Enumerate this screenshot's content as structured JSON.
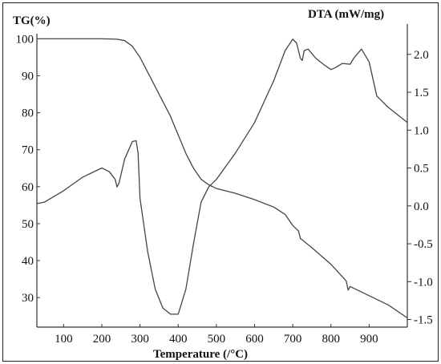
{
  "chart_data": {
    "type": "line",
    "xlabel": "Temperature (/°C)",
    "ylabel_left": "TG(%)",
    "ylabel_right": "DTA (mW/mg)",
    "xlim": [
      30,
      1000
    ],
    "ylim_left": [
      22,
      104
    ],
    "ylim_right": [
      -1.6,
      2.4
    ],
    "x_ticks": [
      100,
      200,
      300,
      400,
      500,
      600,
      700,
      800,
      900
    ],
    "x_tick_labels": [
      "100",
      "200",
      "300",
      "400",
      "500",
      "600",
      "700",
      "800",
      "900"
    ],
    "y_left_ticks": [
      100,
      90,
      80,
      70,
      60,
      50,
      40,
      30
    ],
    "y_left_tick_labels": [
      "100",
      "90",
      "80",
      "70",
      "60",
      "50",
      "40",
      "30"
    ],
    "y_right_ticks": [
      2.0,
      1.5,
      1.0,
      0.5,
      0.0,
      -0.5,
      -1.0,
      -1.5
    ],
    "y_right_tick_labels": [
      "2.0",
      "1.5",
      "1.0",
      "0.5",
      "0.0",
      "-0.5",
      "-1.0",
      "-1.5"
    ],
    "grid": false,
    "series": [
      {
        "axis": "left",
        "x": [
          30,
          100,
          150,
          200,
          240,
          260,
          280,
          300,
          330,
          360,
          380,
          400,
          420,
          440,
          460,
          480,
          500,
          550,
          600,
          650,
          680,
          700,
          715,
          720,
          750,
          800,
          840,
          845,
          850,
          900,
          950,
          1000
        ],
        "y": [
          100,
          100,
          100,
          100,
          99.9,
          99.5,
          98,
          95,
          89,
          83,
          79,
          74,
          69,
          65,
          62,
          60.5,
          59.5,
          58.2,
          56.5,
          54.5,
          52.5,
          49.5,
          48,
          46,
          43.5,
          39,
          34.5,
          32,
          33,
          30.5,
          28,
          24.5
        ]
      },
      {
        "axis": "right",
        "x": [
          30,
          50,
          100,
          150,
          200,
          220,
          235,
          240,
          245,
          260,
          280,
          290,
          295,
          300,
          320,
          340,
          360,
          380,
          400,
          420,
          440,
          460,
          480,
          500,
          550,
          600,
          650,
          680,
          700,
          710,
          720,
          725,
          730,
          740,
          760,
          780,
          800,
          810,
          830,
          850,
          860,
          880,
          900,
          920,
          950,
          1000
        ],
        "y": [
          0.03,
          0.05,
          0.2,
          0.38,
          0.5,
          0.45,
          0.35,
          0.25,
          0.3,
          0.62,
          0.85,
          0.86,
          0.7,
          0.1,
          -0.6,
          -1.1,
          -1.35,
          -1.43,
          -1.43,
          -1.1,
          -0.5,
          0.05,
          0.25,
          0.35,
          0.7,
          1.1,
          1.65,
          2.05,
          2.2,
          2.15,
          1.95,
          1.92,
          2.05,
          2.07,
          1.95,
          1.87,
          1.8,
          1.82,
          1.88,
          1.87,
          1.95,
          2.07,
          1.9,
          1.45,
          1.3,
          1.1
        ]
      }
    ]
  }
}
